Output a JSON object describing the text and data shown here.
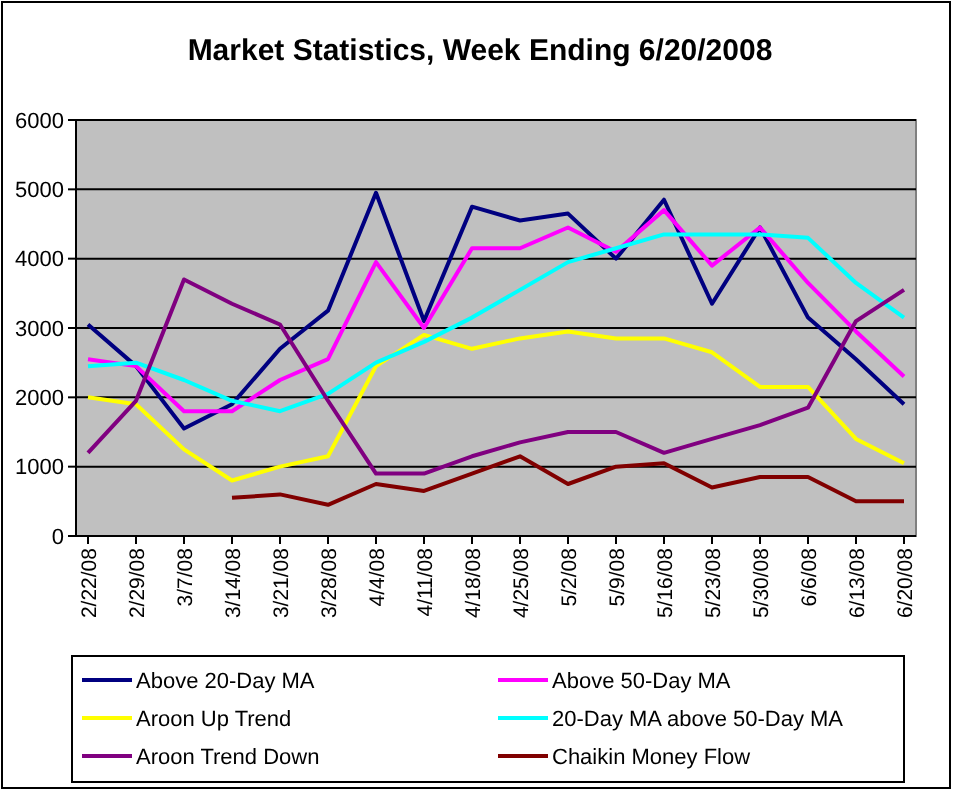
{
  "chart_data": {
    "type": "line",
    "title": "Market Statistics, Week Ending 6/20/2008",
    "categories": [
      "2/22/08",
      "2/29/08",
      "3/7/08",
      "3/14/08",
      "3/21/08",
      "3/28/08",
      "4/4/08",
      "4/11/08",
      "4/18/08",
      "4/25/08",
      "5/2/08",
      "5/9/08",
      "5/16/08",
      "5/23/08",
      "5/30/08",
      "6/6/08",
      "6/13/08",
      "6/20/08"
    ],
    "series": [
      {
        "name": "Above 20-Day MA",
        "color": "#000080",
        "values": [
          3050,
          2450,
          1550,
          1900,
          2700,
          3250,
          4950,
          3100,
          4750,
          4550,
          4650,
          4000,
          4850,
          3350,
          4450,
          3150,
          2550,
          1900
        ]
      },
      {
        "name": "Above 50-Day MA",
        "color": "#ff00ff",
        "values": [
          2550,
          2450,
          1800,
          1800,
          2250,
          2550,
          3950,
          3000,
          4150,
          4150,
          4450,
          4100,
          4700,
          3900,
          4450,
          3650,
          2950,
          2300
        ]
      },
      {
        "name": "Aroon Up Trend",
        "color": "#ffff00",
        "values": [
          2000,
          1900,
          1250,
          800,
          1000,
          1150,
          2450,
          2900,
          2700,
          2850,
          2950,
          2850,
          2850,
          2650,
          2150,
          2150,
          1400,
          1050
        ]
      },
      {
        "name": "20-Day MA above 50-Day MA",
        "color": "#00ffff",
        "values": [
          2450,
          2500,
          2250,
          1950,
          1800,
          2050,
          2500,
          2800,
          3150,
          3550,
          3950,
          4150,
          4350,
          4350,
          4350,
          4300,
          3650,
          3150
        ]
      },
      {
        "name": "Aroon Trend Down",
        "color": "#800080",
        "values": [
          1200,
          1950,
          3700,
          3350,
          3050,
          1950,
          900,
          900,
          1150,
          1350,
          1500,
          1500,
          1200,
          1400,
          1600,
          1850,
          3100,
          3550
        ]
      },
      {
        "name": "Chaikin Money Flow",
        "color": "#800000",
        "values": [
          null,
          null,
          null,
          550,
          600,
          450,
          750,
          650,
          900,
          1150,
          750,
          1000,
          1050,
          700,
          850,
          850,
          500,
          500
        ]
      }
    ],
    "ylim": [
      0,
      6000
    ],
    "yticks": [
      0,
      1000,
      2000,
      3000,
      4000,
      5000,
      6000
    ],
    "grid": "y",
    "legend": "bottom",
    "marker": "none",
    "line_style": "solid"
  }
}
